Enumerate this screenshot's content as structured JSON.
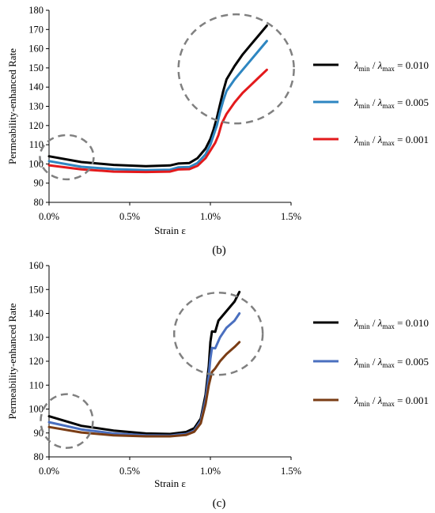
{
  "chart_data": [
    {
      "panel": "(b)",
      "type": "line",
      "xlabel": "Strain ε",
      "ylabel": "Permeability-enhanced Rate",
      "xlim": [
        0.0,
        1.5
      ],
      "ylim": [
        80,
        180
      ],
      "x_ticks": [
        "0.0%",
        "0.5%",
        "1.0%",
        "1.5%"
      ],
      "y_ticks": [
        "80",
        "90",
        "100",
        "110",
        "120",
        "130",
        "140",
        "150",
        "160",
        "170",
        "180"
      ],
      "grid": false,
      "legend_position": "right",
      "legend_lhs": "λmin/λmax",
      "legend_subscripts": [
        "min",
        "max"
      ],
      "series": [
        {
          "name": "λmin/λmax = 0.010",
          "ratio": "0.010",
          "color": "#000000",
          "points": [
            [
              0.0,
              104
            ],
            [
              0.2,
              101
            ],
            [
              0.4,
              99.5
            ],
            [
              0.6,
              98.8
            ],
            [
              0.75,
              99.2
            ],
            [
              0.8,
              100.2
            ],
            [
              0.87,
              100.5
            ],
            [
              0.92,
              103
            ],
            [
              0.97,
              108
            ],
            [
              1.0,
              113
            ],
            [
              1.02,
              118
            ],
            [
              1.04,
              124
            ],
            [
              1.06,
              131
            ],
            [
              1.08,
              138
            ],
            [
              1.1,
              144
            ],
            [
              1.15,
              151
            ],
            [
              1.2,
              157
            ],
            [
              1.25,
              162
            ],
            [
              1.3,
              167
            ],
            [
              1.35,
              172
            ]
          ]
        },
        {
          "name": "λmin/λmax = 0.005",
          "ratio": "0.005",
          "color": "#2e86c1",
          "points": [
            [
              0.0,
              101.5
            ],
            [
              0.2,
              98.5
            ],
            [
              0.4,
              97.3
            ],
            [
              0.6,
              96.8
            ],
            [
              0.75,
              97
            ],
            [
              0.8,
              98.2
            ],
            [
              0.87,
              98.4
            ],
            [
              0.92,
              100.5
            ],
            [
              0.97,
              105
            ],
            [
              1.0,
              110
            ],
            [
              1.02,
              115
            ],
            [
              1.04,
              120
            ],
            [
              1.06,
              127
            ],
            [
              1.08,
              133
            ],
            [
              1.1,
              138
            ],
            [
              1.15,
              144
            ],
            [
              1.2,
              149
            ],
            [
              1.25,
              154
            ],
            [
              1.3,
              159
            ],
            [
              1.35,
              164
            ]
          ]
        },
        {
          "name": "λmin/λmax = 0.001",
          "ratio": "0.001",
          "color": "#e31a1c",
          "points": [
            [
              0.0,
              99.3
            ],
            [
              0.2,
              97.2
            ],
            [
              0.4,
              96
            ],
            [
              0.6,
              95.8
            ],
            [
              0.75,
              96
            ],
            [
              0.8,
              97.1
            ],
            [
              0.87,
              97.3
            ],
            [
              0.92,
              99
            ],
            [
              0.97,
              103
            ],
            [
              1.0,
              107
            ],
            [
              1.03,
              111
            ],
            [
              1.05,
              115
            ],
            [
              1.07,
              121
            ],
            [
              1.1,
              126
            ],
            [
              1.15,
              132
            ],
            [
              1.2,
              137
            ],
            [
              1.25,
              141
            ],
            [
              1.3,
              145
            ],
            [
              1.35,
              149
            ]
          ]
        }
      ],
      "annotations": [
        "dashed circle near origin (~0.1%, ~103)",
        "dashed circle at curve ends (~1.15%, ~150)"
      ]
    },
    {
      "panel": "(c)",
      "type": "line",
      "xlabel": "Strain ε",
      "ylabel": "Permeability-enhanced Rate",
      "xlim": [
        0.0,
        1.5
      ],
      "ylim": [
        80,
        160
      ],
      "x_ticks": [
        "0.0%",
        "0.5%",
        "1.0%",
        "1.5%"
      ],
      "y_ticks": [
        "80",
        "90",
        "100",
        "110",
        "120",
        "130",
        "140",
        "150",
        "160"
      ],
      "grid": false,
      "legend_position": "right",
      "legend_lhs": "λmin/λmax",
      "legend_subscripts": [
        "min",
        "max"
      ],
      "series": [
        {
          "name": "λmin/λmax = 0.010",
          "ratio": "0.010",
          "color": "#000000",
          "points": [
            [
              0.0,
              97
            ],
            [
              0.2,
              93
            ],
            [
              0.4,
              91
            ],
            [
              0.6,
              89.8
            ],
            [
              0.75,
              89.6
            ],
            [
              0.8,
              90
            ],
            [
              0.85,
              90.4
            ],
            [
              0.9,
              92
            ],
            [
              0.94,
              96
            ],
            [
              0.97,
              106
            ],
            [
              0.99,
              118
            ],
            [
              1.0,
              128
            ],
            [
              1.01,
              132.5
            ],
            [
              1.03,
              132.3
            ],
            [
              1.05,
              137
            ],
            [
              1.1,
              141
            ],
            [
              1.15,
              145
            ],
            [
              1.18,
              149
            ]
          ]
        },
        {
          "name": "λmin/λmax = 0.005",
          "ratio": "0.005",
          "color": "#4a6fbf",
          "points": [
            [
              0.0,
              94.5
            ],
            [
              0.2,
              91.5
            ],
            [
              0.4,
              89.8
            ],
            [
              0.6,
              89
            ],
            [
              0.75,
              88.9
            ],
            [
              0.8,
              89.3
            ],
            [
              0.85,
              89.6
            ],
            [
              0.9,
              91
            ],
            [
              0.94,
              95
            ],
            [
              0.97,
              104
            ],
            [
              0.99,
              114
            ],
            [
              1.0,
              121
            ],
            [
              1.01,
              125.6
            ],
            [
              1.03,
              125.4
            ],
            [
              1.06,
              130
            ],
            [
              1.1,
              134
            ],
            [
              1.15,
              137
            ],
            [
              1.18,
              140
            ]
          ]
        },
        {
          "name": "λmin/λmax = 0.001",
          "ratio": "0.001",
          "color": "#7a3d15",
          "points": [
            [
              0.0,
              92.5
            ],
            [
              0.2,
              90.2
            ],
            [
              0.4,
              89
            ],
            [
              0.6,
              88.6
            ],
            [
              0.75,
              88.6
            ],
            [
              0.8,
              88.9
            ],
            [
              0.85,
              89.2
            ],
            [
              0.9,
              90.5
            ],
            [
              0.94,
              94
            ],
            [
              0.97,
              102
            ],
            [
              0.99,
              110
            ],
            [
              1.01,
              115.5
            ],
            [
              1.03,
              117
            ],
            [
              1.06,
              120
            ],
            [
              1.1,
              123
            ],
            [
              1.15,
              126
            ],
            [
              1.18,
              128
            ]
          ]
        }
      ],
      "annotations": [
        "dashed circle near origin (~0.1%, ~95)",
        "dashed circle at curve ends (~1.05%, ~131)"
      ]
    }
  ]
}
